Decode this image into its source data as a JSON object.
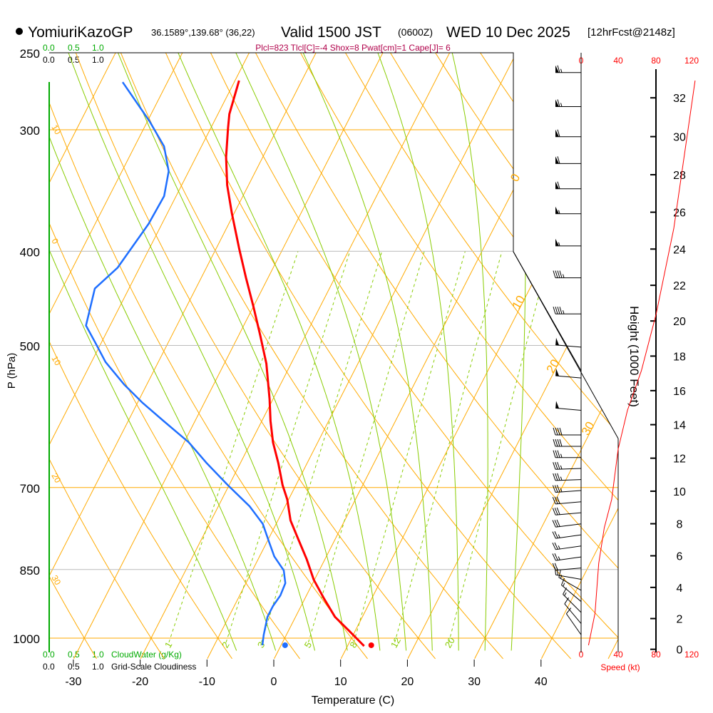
{
  "header": {
    "station": "YomiuriKazoGP",
    "coords": "36.1589°,139.68° (36,22)",
    "valid_prefix": "Valid 1500 JST",
    "utc": "(0600Z)",
    "date": "WED 10 Dec 2025",
    "forecast": "[12hrFcst@2148z]",
    "params": "Plcl=823 Tlcl[C]=-4 Shox=8 Pwat[cm]=1 Cape[J]= 6"
  },
  "scales": {
    "cloudwater_ticks": [
      "0.0",
      "0.5",
      "1.0"
    ],
    "cloudwater_label": "CloudWater (g/Kg)",
    "cloudiness_ticks": [
      "0.0",
      "0.5",
      "1.0"
    ],
    "cloudiness_label": "Grid-Scale Cloudiness",
    "speed_ticks": [
      "0",
      "40",
      "80",
      "120"
    ],
    "speed_label": "Speed (kt)"
  },
  "colors": {
    "temperature": "#ff0000",
    "dewpoint": "#1f6fff",
    "isotherm": "#ffaa00",
    "moist_adiabat": "#88cc00",
    "mixing_ratio": "#88cc00",
    "cloud": "#00aa00",
    "speed": "#ff0000"
  },
  "chart_data": {
    "type": "line",
    "subtype": "skew-T log-P",
    "xlabel": "Temperature (C)",
    "ylabel": "P (hPa)",
    "y2label": "Height (1000 Feet)",
    "x_ticks": [
      "-30",
      "-20",
      "-10",
      "0",
      "10",
      "20",
      "30",
      "40"
    ],
    "x_tick_values": [
      -30,
      -20,
      -10,
      0,
      10,
      20,
      30,
      40
    ],
    "y_ticks": [
      "250",
      "300",
      "400",
      "500",
      "700",
      "850",
      "1000"
    ],
    "y_tick_values": [
      250,
      300,
      400,
      500,
      700,
      850,
      1000
    ],
    "ylim_hpa": [
      1020,
      250
    ],
    "height_ticks": [
      "0",
      "2",
      "4",
      "6",
      "8",
      "10",
      "12",
      "14",
      "16",
      "18",
      "20",
      "22",
      "24",
      "26",
      "28",
      "30",
      "32"
    ],
    "isotherm_labels": [
      {
        "text": "0",
        "t": 0,
        "p": 340
      },
      {
        "text": "10",
        "t": 10,
        "p": 460
      },
      {
        "text": "20",
        "t": 20,
        "p": 535
      },
      {
        "text": "30",
        "t": 30,
        "p": 620
      }
    ],
    "dry_adiabat_labels": [
      {
        "text": "10",
        "p": 298
      },
      {
        "text": "0",
        "p": 390
      },
      {
        "text": "10",
        "p": 515
      },
      {
        "text": "20",
        "p": 680
      },
      {
        "text": "30",
        "p": 866
      }
    ],
    "mixing_ratio_labels": [
      "1",
      "2",
      "3",
      "5",
      "8",
      "12",
      "20"
    ],
    "mixing_ratio_values": [
      1,
      2,
      3,
      5,
      8,
      12,
      20
    ],
    "series": [
      {
        "name": "Temperature",
        "pressure": [
          1019,
          983,
          951,
          911,
          871,
          830,
          790,
          757,
          720,
          696,
          661,
          629,
          598,
          568,
          522,
          488,
          456,
          426,
          398,
          366,
          342,
          320,
          299,
          289,
          267
        ],
        "values": [
          12.5,
          9.1,
          5.9,
          2.9,
          -0.1,
          -2.7,
          -5.6,
          -8.1,
          -10.2,
          -12.0,
          -14.3,
          -16.7,
          -18.7,
          -20.5,
          -23.7,
          -26.8,
          -30.0,
          -33.3,
          -36.5,
          -40.3,
          -43.2,
          -45.5,
          -47.4,
          -48.3,
          -49.4
        ]
      },
      {
        "name": "Dewpoint",
        "pressure": [
          1017,
          992,
          951,
          927,
          904,
          878,
          852,
          824,
          796,
          763,
          732,
          696,
          661,
          629,
          598,
          573,
          549,
          520,
          496,
          477,
          437,
          416,
          375,
          351,
          331,
          312,
          294,
          268
        ],
        "values": [
          -2.8,
          -3.4,
          -4.2,
          -4.2,
          -3.9,
          -4.1,
          -5.3,
          -7.8,
          -9.7,
          -12.0,
          -15.3,
          -20.2,
          -25.0,
          -29.3,
          -34.7,
          -39.2,
          -43.3,
          -47.9,
          -51.0,
          -53.6,
          -55.1,
          -53.3,
          -52.0,
          -51.8,
          -53.0,
          -55.6,
          -59.7,
          -66.7
        ]
      },
      {
        "name": "Wind Speed (kt)",
        "pressure": [
          1017,
          943,
          838,
          770,
          720,
          639,
          583,
          531,
          464,
          379,
          267
        ],
        "values": [
          8,
          15,
          19,
          25,
          33,
          40,
          50,
          65,
          81,
          100,
          123
        ]
      }
    ],
    "surface_points": {
      "temperature": 13.5,
      "dewpoint": 0.6,
      "pressure": 1017
    },
    "wind_barbs": [
      {
        "p": 262,
        "kt": 65,
        "dir": 270
      },
      {
        "p": 284,
        "kt": 65,
        "dir": 270
      },
      {
        "p": 305,
        "kt": 60,
        "dir": 270
      },
      {
        "p": 325,
        "kt": 60,
        "dir": 270
      },
      {
        "p": 345,
        "kt": 60,
        "dir": 270
      },
      {
        "p": 366,
        "kt": 55,
        "dir": 270
      },
      {
        "p": 395,
        "kt": 55,
        "dir": 270
      },
      {
        "p": 426,
        "kt": 45,
        "dir": 270
      },
      {
        "p": 464,
        "kt": 45,
        "dir": 270
      },
      {
        "p": 502,
        "kt": 50,
        "dir": 275
      },
      {
        "p": 540,
        "kt": 50,
        "dir": 275
      },
      {
        "p": 583,
        "kt": 50,
        "dir": 275
      },
      {
        "p": 618,
        "kt": 40,
        "dir": 270
      },
      {
        "p": 635,
        "kt": 40,
        "dir": 270
      },
      {
        "p": 652,
        "kt": 35,
        "dir": 270
      },
      {
        "p": 669,
        "kt": 35,
        "dir": 268
      },
      {
        "p": 687,
        "kt": 35,
        "dir": 268
      },
      {
        "p": 705,
        "kt": 35,
        "dir": 266
      },
      {
        "p": 724,
        "kt": 30,
        "dir": 265
      },
      {
        "p": 743,
        "kt": 30,
        "dir": 265
      },
      {
        "p": 763,
        "kt": 30,
        "dir": 263
      },
      {
        "p": 783,
        "kt": 25,
        "dir": 262
      },
      {
        "p": 804,
        "kt": 25,
        "dir": 262
      },
      {
        "p": 825,
        "kt": 25,
        "dir": 262
      },
      {
        "p": 847,
        "kt": 20,
        "dir": 265
      },
      {
        "p": 870,
        "kt": 20,
        "dir": 280
      },
      {
        "p": 893,
        "kt": 15,
        "dir": 300
      },
      {
        "p": 917,
        "kt": 15,
        "dir": 310
      },
      {
        "p": 941,
        "kt": 15,
        "dir": 315
      },
      {
        "p": 966,
        "kt": 10,
        "dir": 320
      },
      {
        "p": 992,
        "kt": 10,
        "dir": 325
      }
    ]
  }
}
